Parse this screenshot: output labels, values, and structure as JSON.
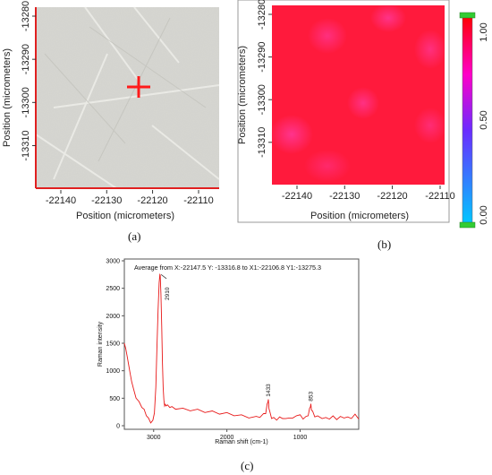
{
  "panel_a": {
    "x_ticks": [
      "-22140",
      "-22130",
      "-22120",
      "-22110"
    ],
    "y_ticks": [
      "-13280",
      "-13290",
      "-13300",
      "-13310"
    ],
    "xlabel": "Position (micrometers)",
    "ylabel": "Position (micrometers)",
    "caption": "(a)",
    "marker_icon": "crosshair-plus",
    "marker_color": "#ff1a1a",
    "border_color": "#e02020"
  },
  "panel_b": {
    "x_ticks": [
      "-22140",
      "-22130",
      "-22120",
      "-22110"
    ],
    "y_ticks": [
      "-13280",
      "-13290",
      "-13300",
      "-13310"
    ],
    "xlabel": "Position (micrometers)",
    "ylabel": "Position (micrometers)",
    "caption": "(b)",
    "map_color": "#ff1a3c",
    "spot_color": "#ff3aa0"
  },
  "colorbar": {
    "ticks": [
      "1.00",
      "0.50",
      "0.00"
    ],
    "stops": [
      "#ff0000",
      "#ff00c8",
      "#6a2cff",
      "#00c8ff"
    ],
    "handle_color": "#33cc33"
  },
  "panel_c": {
    "caption": "(c)",
    "annotation": "Average from X:-22147.5 Y: -13316.8 to X1:-22106.8 Y1:-13275.3",
    "line_color": "#e81818"
  },
  "chart_data": {
    "type": "line",
    "title": "Average from X:-22147.5 Y: -13316.8 to X1:-22106.8 Y1:-13275.3",
    "xlabel": "Raman shift (cm-1)",
    "ylabel": "Raman intensity",
    "x_ticks": [
      "3000",
      "2000",
      "1000"
    ],
    "y_ticks": [
      "0",
      "500",
      "1000",
      "1500",
      "2000",
      "2500",
      "3000"
    ],
    "xlim": [
      3400,
      200
    ],
    "ylim": [
      0,
      3000
    ],
    "peak_labels": [
      {
        "x": 2910,
        "label": "2910"
      },
      {
        "x": 1433,
        "label": "1433"
      },
      {
        "x": 853,
        "label": "853"
      }
    ],
    "series": [
      {
        "x": [
          3400,
          3380,
          3360,
          3340,
          3320,
          3300,
          3270,
          3240,
          3200,
          3160,
          3130,
          3100,
          3070,
          3040,
          3010,
          2990,
          2970,
          2955,
          2940,
          2925,
          2915,
          2910,
          2900,
          2890,
          2880,
          2870,
          2860,
          2850,
          2840,
          2830,
          2810,
          2780,
          2750,
          2700,
          2600,
          2500,
          2400,
          2300,
          2200,
          2100,
          2000,
          1900,
          1800,
          1700,
          1600,
          1550,
          1500,
          1470,
          1450,
          1440,
          1433,
          1425,
          1410,
          1390,
          1360,
          1320,
          1280,
          1240,
          1200,
          1150,
          1100,
          1050,
          1000,
          960,
          920,
          890,
          870,
          860,
          853,
          845,
          830,
          800,
          760,
          700,
          650,
          600,
          550,
          500,
          450,
          400,
          350,
          300,
          250,
          200
        ],
        "y": [
          1500,
          1400,
          1250,
          1100,
          950,
          800,
          650,
          520,
          420,
          350,
          280,
          200,
          120,
          70,
          80,
          250,
          700,
          1400,
          2100,
          2600,
          2750,
          2740,
          2400,
          1800,
          1150,
          700,
          450,
          380,
          370,
          380,
          360,
          350,
          330,
          320,
          300,
          290,
          280,
          260,
          250,
          230,
          220,
          200,
          180,
          160,
          150,
          170,
          200,
          240,
          380,
          450,
          460,
          330,
          220,
          150,
          130,
          120,
          140,
          150,
          110,
          160,
          120,
          200,
          180,
          140,
          150,
          200,
          300,
          360,
          380,
          300,
          250,
          180,
          160,
          150,
          130,
          140,
          160,
          130,
          150,
          160,
          140,
          150,
          190,
          140
        ]
      }
    ]
  }
}
